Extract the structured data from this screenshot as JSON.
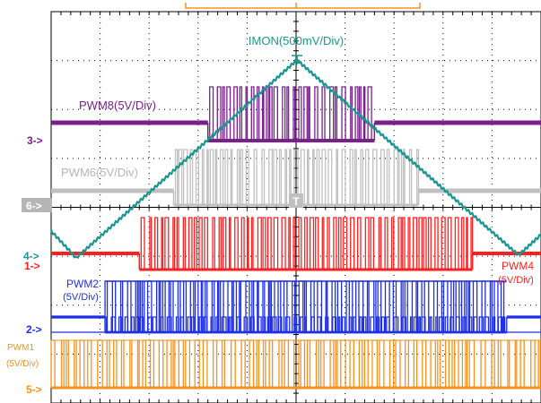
{
  "chart_data": {
    "type": "line",
    "title": "",
    "grid": true,
    "series": [
      {
        "name": "IMON(500mV/Div)",
        "shape": "triangle",
        "color": "#1a9690",
        "marker": "4->"
      },
      {
        "name": "PWM8(5V/Div)",
        "color": "#7b1f8f",
        "marker": "3->",
        "active_window": [
          3.2,
          6.6
        ]
      },
      {
        "name": "PWM6(5V/Div)",
        "color": "#c0c0c0",
        "marker": "6->",
        "active_window": [
          2.5,
          7.5
        ]
      },
      {
        "name": "PWM4",
        "sublabel": "(5V/Div)",
        "color": "#ff1f1f",
        "marker": "1->",
        "active_window": [
          1.8,
          8.6
        ]
      },
      {
        "name": "PWM2",
        "sublabel": "(5V/Div)",
        "color": "#1f2fe6",
        "marker": "2->",
        "active_window": [
          1.1,
          9.3
        ]
      },
      {
        "name": "PWM1",
        "sublabel": "(5V/Div)",
        "color": "#f5921e",
        "marker": "5->",
        "active_window": [
          0.0,
          10.0
        ]
      }
    ]
  }
}
